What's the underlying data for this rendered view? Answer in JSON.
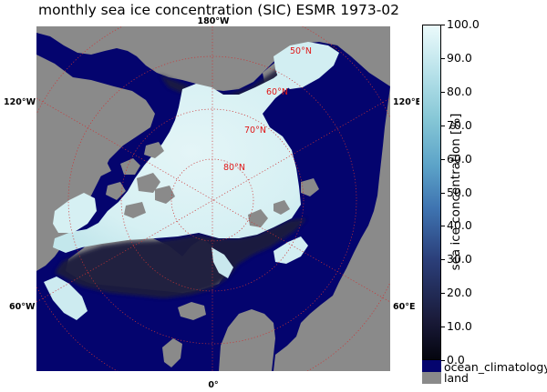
{
  "title": "monthly sea ice concentration (SIC) ESMR 1973-02",
  "map": {
    "projection": "north-polar-stereographic",
    "longitude_labels": {
      "top": "180°W",
      "left_upper": "120°W",
      "right_upper": "120°E",
      "left_lower": "60°W",
      "right_lower": "60°E",
      "bottom": "0°"
    },
    "latitude_labels": [
      "50°N",
      "60°N",
      "70°N",
      "80°N"
    ],
    "colors": {
      "ocean": "#04046e",
      "land": "#8a8a8a",
      "grid": "#cc3333",
      "ice_high": "#ddf3f5",
      "ice_low": "#0b0b2a"
    }
  },
  "colorbar": {
    "label": "sea ice concentration [%]",
    "ticks": [
      "100.0",
      "90.0",
      "80.0",
      "70.0",
      "60.0",
      "50.0",
      "40.0",
      "30.0",
      "20.0",
      "10.0",
      "0.0"
    ],
    "range": [
      0,
      100
    ],
    "colormap": "ice",
    "extra_categories": [
      {
        "label": "ocean_climatology",
        "color": "#04046e"
      },
      {
        "label": "land",
        "color": "#8a8a8a"
      }
    ]
  }
}
